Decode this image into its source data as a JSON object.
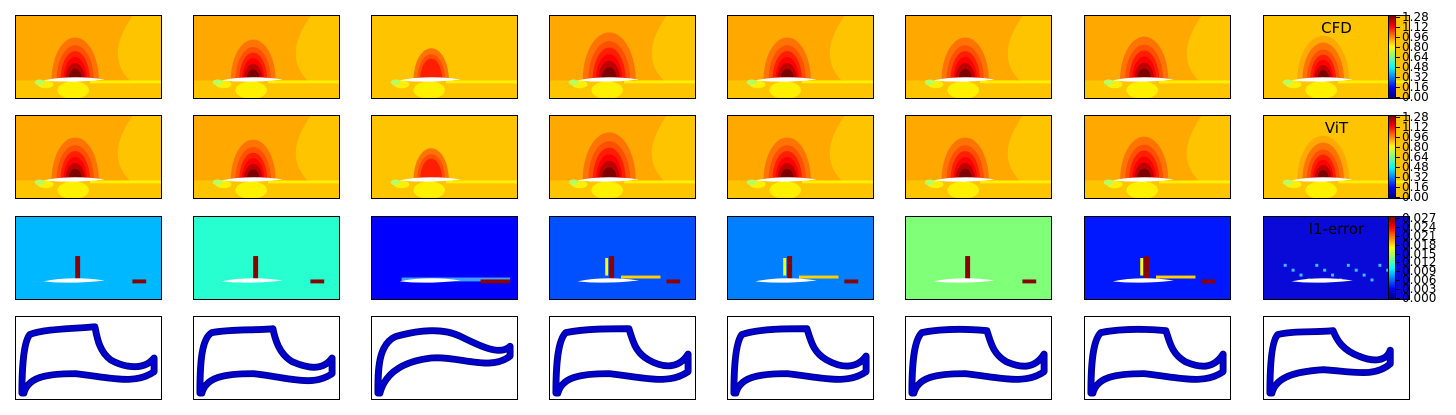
{
  "figure": {
    "columns": 8,
    "rows": [
      {
        "id": "cfd",
        "kind": "field",
        "label": "CFD"
      },
      {
        "id": "vit",
        "kind": "field",
        "label": "ViT"
      },
      {
        "id": "error",
        "kind": "error",
        "label": "l1-error"
      },
      {
        "id": "shape",
        "kind": "shape",
        "label": ""
      }
    ],
    "colorbars": [
      {
        "row": "cfd",
        "ticks": [
          "0.00",
          "0.16",
          "0.32",
          "0.48",
          "0.64",
          "0.80",
          "0.96",
          "1.12",
          "1.28"
        ],
        "colormap": [
          "#00007f",
          "#0000ff",
          "#0080ff",
          "#00ffff",
          "#80ff80",
          "#ffff00",
          "#ff8000",
          "#ff0000",
          "#7f0000"
        ]
      },
      {
        "row": "vit",
        "ticks": [
          "0.00",
          "0.16",
          "0.32",
          "0.48",
          "0.64",
          "0.80",
          "0.96",
          "1.12",
          "1.28"
        ],
        "colormap": [
          "#00007f",
          "#0000ff",
          "#0080ff",
          "#00ffff",
          "#80ff80",
          "#ffff00",
          "#ff8000",
          "#ff0000",
          "#7f0000"
        ]
      },
      {
        "row": "error",
        "ticks": [
          "0.000",
          "0.003",
          "0.006",
          "0.009",
          "0.012",
          "0.015",
          "0.018",
          "0.021",
          "0.024",
          "0.027"
        ],
        "colormap": [
          "#00007f",
          "#0000ff",
          "#0080ff",
          "#00ffff",
          "#80ff80",
          "#ffff00",
          "#ff8000",
          "#ff0000",
          "#7f0000"
        ]
      }
    ],
    "error_backgrounds": [
      "#00b8ff",
      "#28ffd0",
      "#0000ff",
      "#0050ff",
      "#0080ff",
      "#80ff78",
      "#0018ff",
      "#0a0ad8"
    ],
    "field_palette": {
      "outer": "#ffc400",
      "mid": "#ffa800",
      "inner1": "#ff7400",
      "inner2": "#ff5000",
      "inner3": "#ff1e00",
      "core": "#c00000",
      "deep": "#7f0000",
      "wake": "#fff000",
      "pale": "#b8ff60"
    },
    "shape_colors": {
      "fill": "#0000cc",
      "edge": "#000080"
    }
  }
}
